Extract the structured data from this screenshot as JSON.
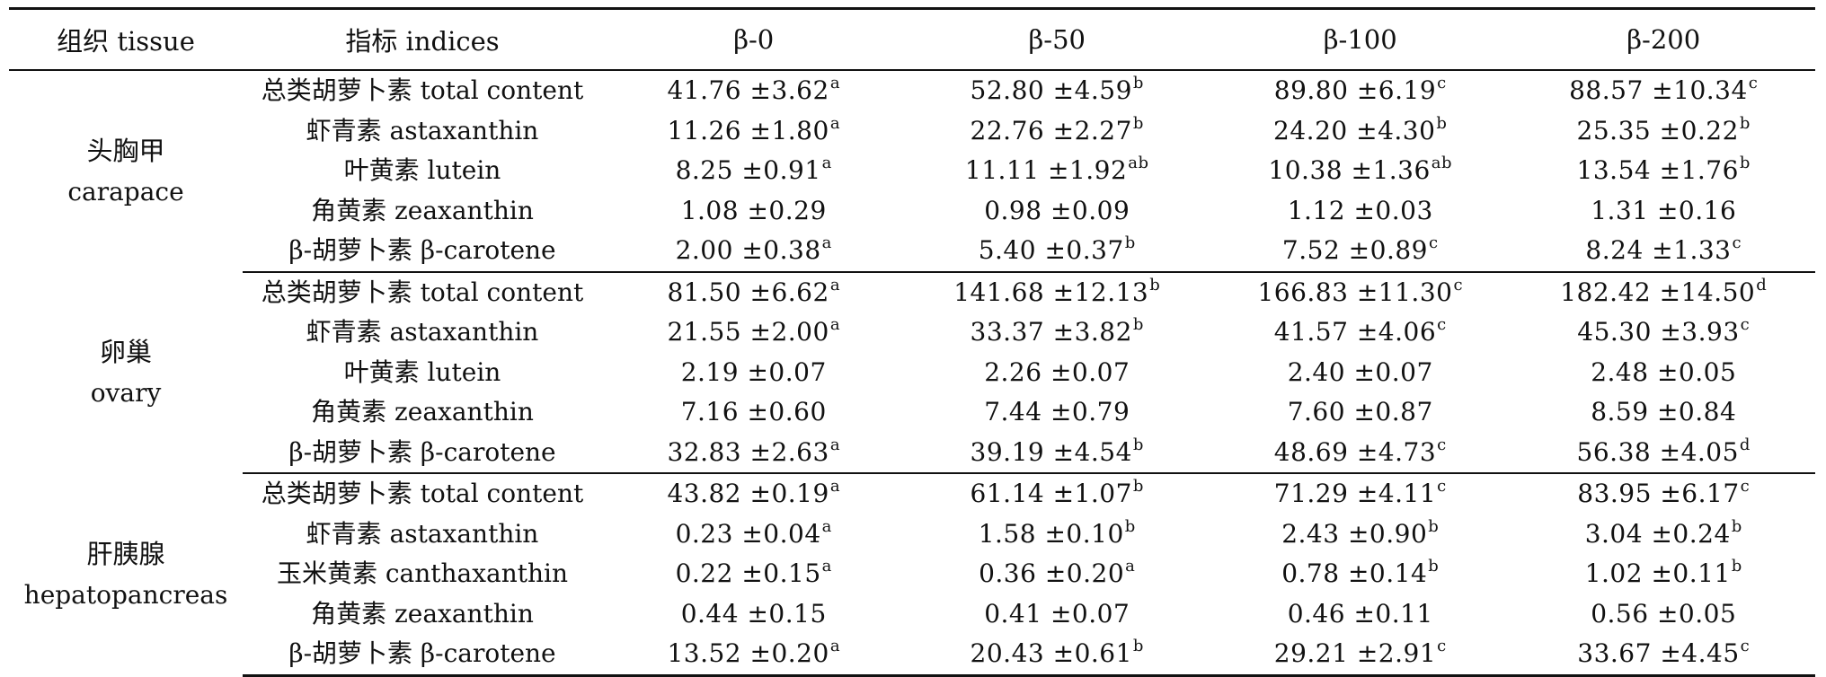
{
  "headers": [
    "组织 tissue",
    "指标 indices",
    "β-0",
    "β-50",
    "β-100",
    "β-200"
  ],
  "groups": [
    {
      "tissue_cn": "头胸甲",
      "tissue_en": "carapace",
      "rows": [
        {
          "index": "总类胡萝卜素 total content",
          "values": [
            {
              "v": "41.76 ±3.62",
              "s": "a"
            },
            {
              "v": "52.80 ±4.59",
              "s": "b"
            },
            {
              "v": "89.80 ±6.19",
              "s": "c"
            },
            {
              "v": "88.57 ±10.34",
              "s": "c"
            }
          ]
        },
        {
          "index": "虾青素 astaxanthin",
          "values": [
            {
              "v": "11.26 ±1.80",
              "s": "a"
            },
            {
              "v": "22.76 ±2.27",
              "s": "b"
            },
            {
              "v": "24.20 ±4.30",
              "s": "b"
            },
            {
              "v": "25.35 ±0.22",
              "s": "b"
            }
          ]
        },
        {
          "index": "叶黄素 lutein",
          "values": [
            {
              "v": "8.25 ±0.91",
              "s": "a"
            },
            {
              "v": "11.11 ±1.92",
              "s": "ab"
            },
            {
              "v": "10.38 ±1.36",
              "s": "ab"
            },
            {
              "v": "13.54 ±1.76",
              "s": "b"
            }
          ]
        },
        {
          "index": "角黄素 zeaxanthin",
          "values": [
            {
              "v": "1.08 ±0.29",
              "s": ""
            },
            {
              "v": "0.98 ±0.09",
              "s": ""
            },
            {
              "v": "1.12 ±0.03",
              "s": ""
            },
            {
              "v": "1.31 ±0.16",
              "s": ""
            }
          ]
        },
        {
          "index": "β-胡萝卜素 β-carotene",
          "values": [
            {
              "v": "2.00 ±0.38",
              "s": "a"
            },
            {
              "v": "5.40 ±0.37",
              "s": "b"
            },
            {
              "v": "7.52 ±0.89",
              "s": "c"
            },
            {
              "v": "8.24 ±1.33",
              "s": "c"
            }
          ]
        }
      ]
    },
    {
      "tissue_cn": "卵巢",
      "tissue_en": "ovary",
      "rows": [
        {
          "index": "总类胡萝卜素 total content",
          "values": [
            {
              "v": "81.50 ±6.62",
              "s": "a"
            },
            {
              "v": "141.68 ±12.13",
              "s": "b"
            },
            {
              "v": "166.83 ±11.30",
              "s": "c"
            },
            {
              "v": "182.42 ±14.50",
              "s": "d"
            }
          ]
        },
        {
          "index": "虾青素 astaxanthin",
          "values": [
            {
              "v": "21.55 ±2.00",
              "s": "a"
            },
            {
              "v": "33.37 ±3.82",
              "s": "b"
            },
            {
              "v": "41.57 ±4.06",
              "s": "c"
            },
            {
              "v": "45.30 ±3.93",
              "s": "c"
            }
          ]
        },
        {
          "index": "叶黄素 lutein",
          "values": [
            {
              "v": "2.19 ±0.07",
              "s": ""
            },
            {
              "v": "2.26 ±0.07",
              "s": ""
            },
            {
              "v": "2.40 ±0.07",
              "s": ""
            },
            {
              "v": "2.48 ±0.05",
              "s": ""
            }
          ]
        },
        {
          "index": "角黄素 zeaxanthin",
          "values": [
            {
              "v": "7.16 ±0.60",
              "s": ""
            },
            {
              "v": "7.44 ±0.79",
              "s": ""
            },
            {
              "v": "7.60 ±0.87",
              "s": ""
            },
            {
              "v": "8.59 ±0.84",
              "s": ""
            }
          ]
        },
        {
          "index": "β-胡萝卜素 β-carotene",
          "values": [
            {
              "v": "32.83 ±2.63",
              "s": "a"
            },
            {
              "v": "39.19 ±4.54",
              "s": "b"
            },
            {
              "v": "48.69 ±4.73",
              "s": "c"
            },
            {
              "v": "56.38 ±4.05",
              "s": "d"
            }
          ]
        }
      ]
    },
    {
      "tissue_cn": "肝胰腺",
      "tissue_en": "hepatopancreas",
      "rows": [
        {
          "index": "总类胡萝卜素 total content",
          "values": [
            {
              "v": "43.82 ±0.19",
              "s": "a"
            },
            {
              "v": "61.14 ±1.07",
              "s": "b"
            },
            {
              "v": "71.29 ±4.11",
              "s": "c"
            },
            {
              "v": "83.95 ±6.17",
              "s": "c"
            }
          ]
        },
        {
          "index": "虾青素 astaxanthin",
          "values": [
            {
              "v": "0.23 ±0.04",
              "s": "a"
            },
            {
              "v": "1.58 ±0.10",
              "s": "b"
            },
            {
              "v": "2.43 ±0.90",
              "s": "b"
            },
            {
              "v": "3.04 ±0.24",
              "s": "b"
            }
          ]
        },
        {
          "index": "玉米黄素 canthaxanthin",
          "values": [
            {
              "v": "0.22 ±0.15",
              "s": "a"
            },
            {
              "v": "0.36 ±0.20",
              "s": "a"
            },
            {
              "v": "0.78 ±0.14",
              "s": "b"
            },
            {
              "v": "1.02 ±0.11",
              "s": "b"
            }
          ]
        },
        {
          "index": "角黄素 zeaxanthin",
          "values": [
            {
              "v": "0.44 ±0.15",
              "s": ""
            },
            {
              "v": "0.41 ±0.07",
              "s": ""
            },
            {
              "v": "0.46 ±0.11",
              "s": ""
            },
            {
              "v": "0.56 ±0.05",
              "s": ""
            }
          ]
        },
        {
          "index": "β-胡萝卜素 β-carotene",
          "values": [
            {
              "v": "13.52 ±0.20",
              "s": "a"
            },
            {
              "v": "20.43 ±0.61",
              "s": "b"
            },
            {
              "v": "29.21 ±2.91",
              "s": "c"
            },
            {
              "v": "33.67 ±4.45",
              "s": "c"
            }
          ]
        }
      ]
    }
  ]
}
